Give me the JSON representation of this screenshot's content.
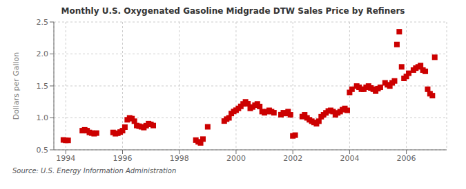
{
  "chart_data": {
    "type": "scatter",
    "title": "Monthly U.S. Oxygenated Gasoline Midgrade DTW Sales Price by Refiners",
    "ylabel": "Dollars per Gallon",
    "annotations": [
      "Source: U.S. Energy Information Administration"
    ],
    "color": "#cc0000",
    "marker": "square",
    "grid": true,
    "xlim": [
      1993.58,
      2007.42
    ],
    "ylim": [
      0.5,
      2.5
    ],
    "xticks": [
      1994,
      1996,
      1998,
      2000,
      2002,
      2004,
      2006
    ],
    "yticks": [
      0.5,
      {
        "value": 1.0,
        "label": "1.0"
      },
      1.5,
      {
        "value": 2.0,
        "label": "2.0"
      },
      2.5
    ],
    "x": [
      1993.917,
      1994.0,
      1994.083,
      1994.583,
      1994.667,
      1994.75,
      1994.833,
      1994.917,
      1995.0,
      1995.083,
      1995.667,
      1995.75,
      1995.833,
      1995.917,
      1996.0,
      1996.083,
      1996.167,
      1996.25,
      1996.333,
      1996.417,
      1996.5,
      1996.583,
      1996.667,
      1996.75,
      1996.833,
      1996.917,
      1997.0,
      1997.083,
      1998.583,
      1998.667,
      1998.75,
      1998.833,
      1999.0,
      1999.583,
      1999.667,
      1999.75,
      1999.833,
      1999.917,
      2000.0,
      2000.083,
      2000.167,
      2000.25,
      2000.333,
      2000.417,
      2000.5,
      2000.583,
      2000.667,
      2000.75,
      2000.833,
      2000.917,
      2001.0,
      2001.083,
      2001.167,
      2001.25,
      2001.333,
      2001.583,
      2001.667,
      2001.75,
      2001.833,
      2001.917,
      2002.0,
      2002.083,
      2002.333,
      2002.417,
      2002.5,
      2002.583,
      2002.667,
      2002.75,
      2002.833,
      2002.917,
      2003.0,
      2003.083,
      2003.167,
      2003.25,
      2003.333,
      2003.417,
      2003.5,
      2003.583,
      2003.667,
      2003.75,
      2003.833,
      2003.917,
      2004.0,
      2004.083,
      2004.25,
      2004.333,
      2004.417,
      2004.5,
      2004.583,
      2004.667,
      2004.75,
      2004.833,
      2004.917,
      2005.0,
      2005.083,
      2005.25,
      2005.333,
      2005.417,
      2005.5,
      2005.583,
      2005.667,
      2005.75,
      2005.833,
      2005.917,
      2006.0,
      2006.083,
      2006.25,
      2006.333,
      2006.417,
      2006.5,
      2006.583,
      2006.667,
      2006.75,
      2006.833,
      2006.917,
      2007.0
    ],
    "values": [
      0.655,
      0.648,
      0.648,
      0.8,
      0.813,
      0.8,
      0.772,
      0.762,
      0.752,
      0.762,
      0.772,
      0.752,
      0.76,
      0.778,
      0.8,
      0.855,
      0.97,
      1.0,
      0.988,
      0.948,
      0.88,
      0.87,
      0.86,
      0.848,
      0.878,
      0.91,
      0.898,
      0.88,
      0.652,
      0.625,
      0.608,
      0.668,
      0.86,
      0.95,
      0.98,
      1.0,
      1.068,
      1.1,
      1.12,
      1.148,
      1.18,
      1.218,
      1.25,
      1.22,
      1.148,
      1.17,
      1.198,
      1.218,
      1.178,
      1.098,
      1.08,
      1.098,
      1.118,
      1.098,
      1.08,
      1.05,
      1.08,
      1.068,
      1.098,
      1.048,
      0.718,
      0.73,
      1.02,
      1.048,
      1.0,
      0.97,
      0.948,
      0.928,
      0.908,
      0.948,
      1.018,
      1.048,
      1.078,
      1.108,
      1.118,
      1.098,
      1.048,
      1.078,
      1.098,
      1.128,
      1.148,
      1.118,
      1.398,
      1.448,
      1.498,
      1.478,
      1.448,
      1.448,
      1.478,
      1.498,
      1.468,
      1.448,
      1.418,
      1.458,
      1.478,
      1.548,
      1.518,
      1.498,
      1.548,
      1.578,
      2.148,
      2.348,
      1.798,
      1.618,
      1.648,
      1.698,
      1.748,
      1.778,
      1.798,
      1.818,
      1.748,
      1.728,
      1.448,
      1.378,
      1.348,
      1.948
    ]
  }
}
